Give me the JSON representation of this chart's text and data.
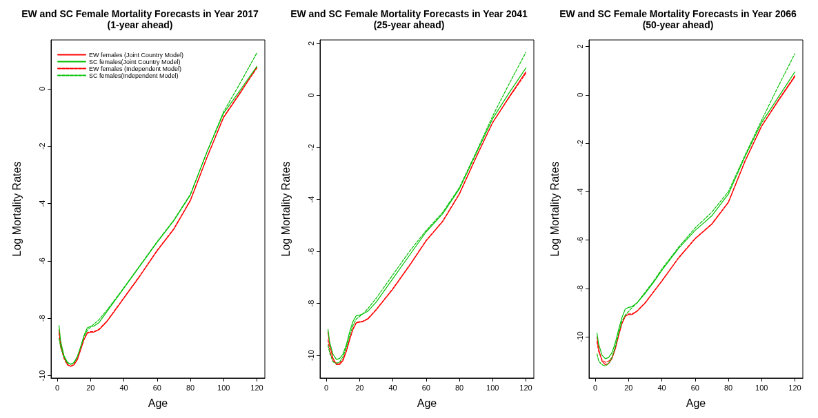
{
  "chart_data": [
    {
      "type": "line",
      "title": "EW and SC Female Mortality Forecasts in Year 2017",
      "subtitle": "(1-year ahead)",
      "xlabel": "Age",
      "ylabel": "Log Mortality Rates",
      "x": [
        1,
        2,
        4,
        6,
        8,
        10,
        12,
        14,
        16,
        18,
        20,
        22,
        25,
        30,
        35,
        40,
        50,
        60,
        70,
        80,
        90,
        100,
        110,
        120
      ],
      "xlim": [
        -3.8,
        124.8
      ],
      "xticks": [
        0,
        20,
        40,
        60,
        80,
        100,
        120
      ],
      "ylim": [
        -10.08,
        1.7
      ],
      "yticks": [
        -10,
        -8,
        -6,
        -4,
        -2,
        0
      ],
      "grid": false,
      "legend": "top left",
      "marker": "none",
      "series": [
        {
          "name": "EW females (Joint Country Model)",
          "color": "#ff0000",
          "line_style": "solid",
          "values": [
            -8.4,
            -8.9,
            -9.35,
            -9.6,
            -9.67,
            -9.62,
            -9.45,
            -9.1,
            -8.75,
            -8.52,
            -8.48,
            -8.48,
            -8.4,
            -8.1,
            -7.7,
            -7.3,
            -6.5,
            -5.65,
            -4.9,
            -3.9,
            -2.4,
            -1.0,
            -0.15,
            0.75
          ]
        },
        {
          "name": "SC females(Joint Country Model)",
          "color": "#00c000",
          "line_style": "solid",
          "values": [
            -8.25,
            -8.8,
            -9.3,
            -9.52,
            -9.6,
            -9.55,
            -9.35,
            -9.0,
            -8.6,
            -8.33,
            -8.28,
            -8.27,
            -8.15,
            -7.75,
            -7.35,
            -6.95,
            -6.15,
            -5.35,
            -4.6,
            -3.7,
            -2.2,
            -0.85,
            -0.05,
            0.78
          ]
        },
        {
          "name": "EW females (Independent Model)",
          "color": "#ff0000",
          "line_style": "dashed",
          "values": [
            -8.5,
            -9.0,
            -9.4,
            -9.62,
            -9.67,
            -9.6,
            -9.42,
            -9.08,
            -8.73,
            -8.5,
            -8.46,
            -8.46,
            -8.38,
            -8.08,
            -7.68,
            -7.28,
            -6.48,
            -5.63,
            -4.88,
            -3.88,
            -2.38,
            -0.98,
            -0.12,
            0.72
          ]
        },
        {
          "name": "SC females(Independent Model)",
          "color": "#00c000",
          "line_style": "dashed",
          "values": [
            -8.7,
            -9.0,
            -9.35,
            -9.55,
            -9.6,
            -9.53,
            -9.33,
            -9.0,
            -8.65,
            -8.42,
            -8.3,
            -8.2,
            -8.05,
            -7.7,
            -7.32,
            -6.93,
            -6.13,
            -5.33,
            -4.58,
            -3.68,
            -2.2,
            -0.8,
            0.2,
            1.25
          ]
        }
      ]
    },
    {
      "type": "line",
      "title": "EW and SC Female Mortality Forecasts in Year 2041",
      "subtitle": "(25-year ahead)",
      "xlabel": "Age",
      "ylabel": "Log Mortality Rates",
      "x": [
        1,
        2,
        4,
        6,
        8,
        10,
        12,
        14,
        16,
        18,
        20,
        22,
        25,
        30,
        35,
        40,
        50,
        60,
        70,
        80,
        90,
        100,
        110,
        120
      ],
      "xlim": [
        -3.8,
        124.8
      ],
      "xticks": [
        0,
        20,
        40,
        60,
        80,
        100,
        120
      ],
      "ylim": [
        -10.87,
        2.13
      ],
      "yticks": [
        -10,
        -8,
        -6,
        -4,
        -2,
        0,
        2
      ],
      "grid": false,
      "legend": false,
      "marker": "none",
      "series": [
        {
          "color": "#ff0000",
          "line_style": "solid",
          "values": [
            -9.1,
            -9.6,
            -10.1,
            -10.35,
            -10.35,
            -10.2,
            -9.85,
            -9.4,
            -9.0,
            -8.75,
            -8.72,
            -8.7,
            -8.6,
            -8.25,
            -7.85,
            -7.45,
            -6.55,
            -5.6,
            -4.85,
            -3.8,
            -2.4,
            -1.05,
            -0.05,
            0.9
          ]
        },
        {
          "color": "#00c000",
          "line_style": "solid",
          "values": [
            -9.0,
            -9.5,
            -9.95,
            -10.15,
            -10.12,
            -9.95,
            -9.6,
            -9.1,
            -8.7,
            -8.47,
            -8.45,
            -8.4,
            -8.3,
            -7.95,
            -7.5,
            -7.05,
            -6.15,
            -5.25,
            -4.55,
            -3.6,
            -2.25,
            -0.9,
            0.1,
            1.05
          ]
        },
        {
          "color": "#ff0000",
          "line_style": "dashed",
          "values": [
            -9.4,
            -9.8,
            -10.2,
            -10.3,
            -10.3,
            -10.15,
            -9.82,
            -9.38,
            -8.98,
            -8.73,
            -8.7,
            -8.68,
            -8.58,
            -8.23,
            -7.83,
            -7.43,
            -6.53,
            -5.58,
            -4.83,
            -3.78,
            -2.38,
            -1.05,
            -0.08,
            0.85
          ]
        },
        {
          "color": "#00c000",
          "line_style": "dashed",
          "values": [
            -9.6,
            -9.9,
            -10.25,
            -10.3,
            -10.25,
            -10.05,
            -9.7,
            -9.25,
            -8.85,
            -8.6,
            -8.5,
            -8.4,
            -8.2,
            -7.8,
            -7.35,
            -6.9,
            -6.0,
            -5.2,
            -4.5,
            -3.55,
            -2.2,
            -0.8,
            0.45,
            1.65
          ]
        }
      ]
    },
    {
      "type": "line",
      "title": "EW and SC Female Mortality Forecasts in Year 2066",
      "subtitle": "(50-year ahead)",
      "xlabel": "Age",
      "ylabel": "Log Mortality Rates",
      "x": [
        1,
        2,
        4,
        6,
        8,
        10,
        12,
        14,
        16,
        18,
        20,
        22,
        25,
        30,
        35,
        40,
        50,
        60,
        70,
        80,
        90,
        100,
        110,
        120
      ],
      "xlim": [
        -3.8,
        124.8
      ],
      "xticks": [
        0,
        20,
        40,
        60,
        80,
        100,
        120
      ],
      "ylim": [
        -11.7,
        2.27
      ],
      "yticks": [
        -10,
        -8,
        -6,
        -4,
        -2,
        0,
        2
      ],
      "grid": false,
      "legend": false,
      "marker": "none",
      "series": [
        {
          "color": "#ff0000",
          "line_style": "solid",
          "values": [
            -10.0,
            -10.5,
            -11.0,
            -11.15,
            -11.1,
            -10.9,
            -10.5,
            -9.95,
            -9.45,
            -9.15,
            -9.07,
            -9.08,
            -8.95,
            -8.6,
            -8.15,
            -7.7,
            -6.75,
            -5.95,
            -5.35,
            -4.45,
            -2.75,
            -1.3,
            -0.25,
            0.75
          ]
        },
        {
          "color": "#00c000",
          "line_style": "solid",
          "values": [
            -9.85,
            -10.3,
            -10.75,
            -10.9,
            -10.85,
            -10.65,
            -10.25,
            -9.7,
            -9.2,
            -8.85,
            -8.78,
            -8.75,
            -8.6,
            -8.2,
            -7.75,
            -7.25,
            -6.35,
            -5.6,
            -5.0,
            -4.1,
            -2.55,
            -1.15,
            -0.1,
            0.95
          ]
        },
        {
          "color": "#ff0000",
          "line_style": "dashed",
          "values": [
            -10.2,
            -10.6,
            -10.95,
            -11.05,
            -11.0,
            -10.85,
            -10.47,
            -9.93,
            -9.43,
            -9.13,
            -9.05,
            -9.05,
            -8.93,
            -8.58,
            -8.13,
            -7.68,
            -6.73,
            -5.93,
            -5.33,
            -4.43,
            -2.73,
            -1.28,
            -0.22,
            0.8
          ]
        },
        {
          "color": "#00c000",
          "line_style": "dashed",
          "values": [
            -10.7,
            -11.0,
            -11.15,
            -11.2,
            -11.1,
            -10.85,
            -10.4,
            -9.85,
            -9.35,
            -9.1,
            -8.95,
            -8.8,
            -8.6,
            -8.15,
            -7.7,
            -7.2,
            -6.3,
            -5.5,
            -4.85,
            -4.0,
            -2.5,
            -1.05,
            0.35,
            1.7
          ]
        }
      ]
    }
  ]
}
